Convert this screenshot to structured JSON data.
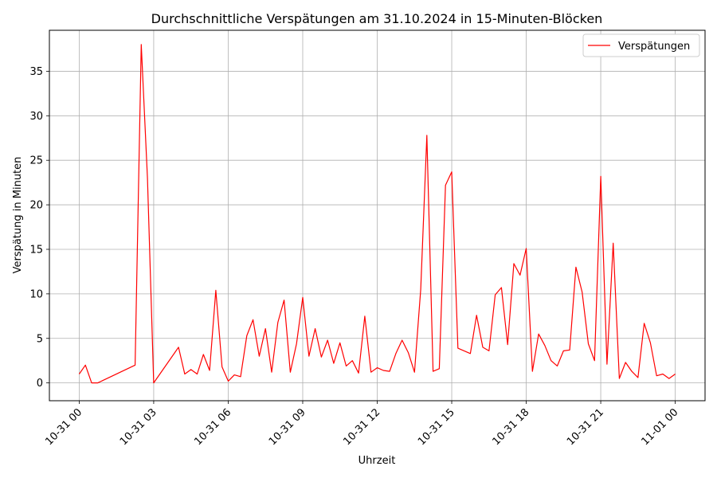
{
  "chart_data": {
    "type": "line",
    "title": "Durchschnittliche Verspätungen am 31.10.2024 in 15-Minuten-Blöcken",
    "xlabel": "Uhrzeit",
    "ylabel": "Verspätung in Minuten",
    "xlim_hours": [
      -1.2,
      25.2
    ],
    "ylim": [
      -2,
      39.6
    ],
    "x_ticks": [
      {
        "value": 0,
        "label": "10-31 00"
      },
      {
        "value": 3,
        "label": "10-31 03"
      },
      {
        "value": 6,
        "label": "10-31 06"
      },
      {
        "value": 9,
        "label": "10-31 09"
      },
      {
        "value": 12,
        "label": "10-31 12"
      },
      {
        "value": 15,
        "label": "10-31 15"
      },
      {
        "value": 18,
        "label": "10-31 18"
      },
      {
        "value": 21,
        "label": "10-31 21"
      },
      {
        "value": 24,
        "label": "11-01 00"
      }
    ],
    "y_ticks": [
      0,
      5,
      10,
      15,
      20,
      25,
      30,
      35
    ],
    "grid": true,
    "legend_position": "top-right",
    "series": [
      {
        "name": "Verspätungen",
        "color": "#ff0000",
        "x": [
          0,
          0.25,
          0.5,
          0.75,
          2.25,
          2.5,
          2.75,
          3,
          4,
          4.25,
          4.5,
          4.75,
          5,
          5.25,
          5.5,
          5.75,
          6,
          6.25,
          6.5,
          6.75,
          7,
          7.25,
          7.5,
          7.75,
          8,
          8.25,
          8.5,
          8.75,
          9,
          9.25,
          9.5,
          9.75,
          10,
          10.25,
          10.5,
          10.75,
          11,
          11.25,
          11.5,
          11.75,
          12,
          12.25,
          12.5,
          12.75,
          13,
          13.25,
          13.5,
          13.75,
          14,
          14.25,
          14.5,
          14.75,
          15,
          15.25,
          15.5,
          15.75,
          16,
          16.25,
          16.5,
          16.75,
          17,
          17.25,
          17.5,
          17.75,
          18,
          18.25,
          18.5,
          18.75,
          19,
          19.25,
          19.5,
          19.75,
          20,
          20.25,
          20.5,
          20.75,
          21,
          21.25,
          21.5,
          21.75,
          22,
          22.25,
          22.5,
          22.75,
          23,
          23.25,
          23.5,
          23.75,
          24
        ],
        "y": [
          1.0,
          2.0,
          0.0,
          0.0,
          2.0,
          38.0,
          23.0,
          0.0,
          4.0,
          1.0,
          1.5,
          1.0,
          3.2,
          1.4,
          10.4,
          1.8,
          0.2,
          0.9,
          0.7,
          5.3,
          7.1,
          3.0,
          6.1,
          1.2,
          6.8,
          9.3,
          1.2,
          4.4,
          9.6,
          3.0,
          6.1,
          2.9,
          4.8,
          2.2,
          4.5,
          1.9,
          2.5,
          1.1,
          7.5,
          1.2,
          1.7,
          1.4,
          1.3,
          3.3,
          4.8,
          3.4,
          1.2,
          10.5,
          27.8,
          1.3,
          1.6,
          22.2,
          23.7,
          3.9,
          3.6,
          3.3,
          7.6,
          4.0,
          3.6,
          9.9,
          10.7,
          4.3,
          13.4,
          12.1,
          15.1,
          1.3,
          5.5,
          4.2,
          2.5,
          1.9,
          3.6,
          3.7,
          13.0,
          10.2,
          4.4,
          2.5,
          23.2,
          2.1,
          15.7,
          0.5,
          2.3,
          1.3,
          0.6,
          6.7,
          4.5,
          0.8,
          1.0,
          0.5,
          1.0
        ]
      }
    ]
  }
}
